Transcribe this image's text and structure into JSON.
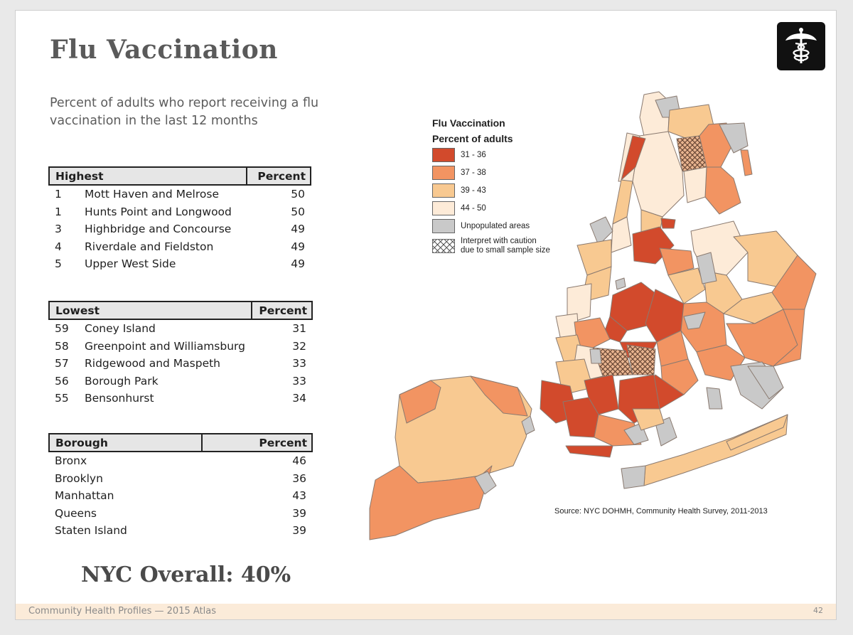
{
  "title": "Flu Vaccination",
  "subtitle": "Percent of adults who report receiving a flu vaccination in the last 12 months",
  "tables": {
    "highest": {
      "header": "Highest",
      "pct_header": "Percent",
      "rows": [
        {
          "rank": "1",
          "name": "Mott Haven and Melrose",
          "pct": "50"
        },
        {
          "rank": "1",
          "name": "Hunts Point and Longwood",
          "pct": "50"
        },
        {
          "rank": "3",
          "name": "Highbridge and Concourse",
          "pct": "49"
        },
        {
          "rank": "4",
          "name": "Riverdale and Fieldston",
          "pct": "49"
        },
        {
          "rank": "5",
          "name": "Upper West Side",
          "pct": "49"
        }
      ]
    },
    "lowest": {
      "header": "Lowest",
      "pct_header": "Percent",
      "rows": [
        {
          "rank": "59",
          "name": "Coney Island",
          "pct": "31"
        },
        {
          "rank": "58",
          "name": "Greenpoint and Williamsburg",
          "pct": "32"
        },
        {
          "rank": "57",
          "name": "Ridgewood and Maspeth",
          "pct": "33"
        },
        {
          "rank": "56",
          "name": "Borough Park",
          "pct": "33"
        },
        {
          "rank": "55",
          "name": "Bensonhurst",
          "pct": "34"
        }
      ]
    },
    "borough": {
      "header": "Borough",
      "pct_header": "Percent",
      "rows": [
        {
          "name": "Bronx",
          "pct": "46"
        },
        {
          "name": "Brooklyn",
          "pct": "36"
        },
        {
          "name": "Manhattan",
          "pct": "43"
        },
        {
          "name": "Queens",
          "pct": "39"
        },
        {
          "name": "Staten Island",
          "pct": "39"
        }
      ]
    }
  },
  "overall": "NYC Overall: 40%",
  "legend": {
    "title": "Flu Vaccination",
    "subtitle": "Percent of adults",
    "items": [
      {
        "label": "31 - 36",
        "color": "#d24a2c"
      },
      {
        "label": "37 - 38",
        "color": "#f29462"
      },
      {
        "label": "39 - 43",
        "color": "#f8c991"
      },
      {
        "label": "44 - 50",
        "color": "#fdebd8"
      },
      {
        "label": "Unpopulated areas",
        "color": "#c9c9c9"
      }
    ],
    "caution_line1": "Interpret with caution",
    "caution_line2": "due to small sample size"
  },
  "source": "Source: NYC DOHMH, Community Health Survey, 2011-2013",
  "footer": {
    "left": "Community Health Profiles — 2015 Atlas",
    "page": "42"
  },
  "icons": {
    "logo": "caduceus-icon"
  }
}
